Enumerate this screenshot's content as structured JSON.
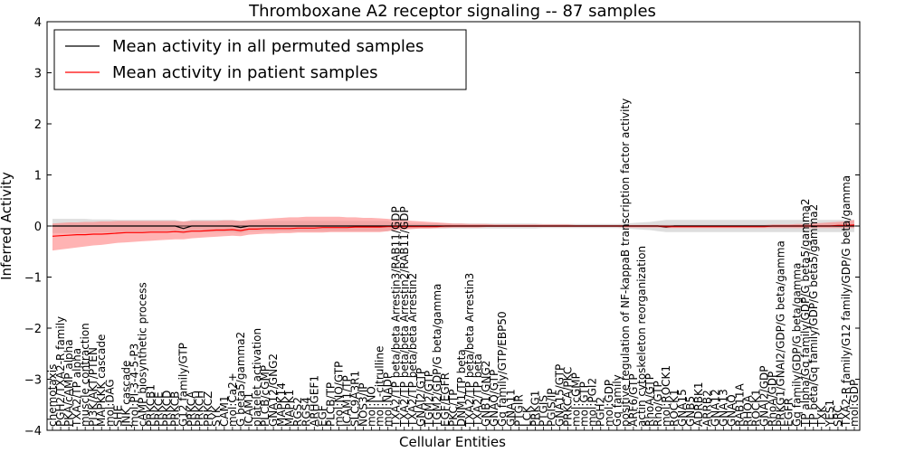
{
  "chart_data": {
    "type": "line",
    "title": "Thromboxane A2 receptor signaling -- 87 samples",
    "xlabel": "Cellular Entities",
    "ylabel": "Inferred Activity",
    "ylim": [
      -4,
      4
    ],
    "yticks": [
      -4,
      -3,
      -2,
      -1,
      0,
      1,
      2,
      3,
      4
    ],
    "colors": {
      "permuted": "#000000",
      "patient": "#ff0000",
      "patient_band": "#ff8080",
      "permuted_band": "#c8c8c8"
    },
    "categories": [
      "chemotaxis",
      "PGH2/TXA2-R family",
      "PKA/cAMP alpha",
      "TXA2/TP alpha",
      "muscle contraction",
      "PI3K/AKT/PTEN",
      "MAPKKK cascade",
      "mol:DAG",
      "SHE",
      "JNK cascade",
      "mol:PI-3-4-5-P3",
      "cAMP biosynthetic process",
      "PRKCB1",
      "PRKCE",
      "PRKCD",
      "PRKCB",
      "G12 family/GTP",
      "PRKCA",
      "PRKCH",
      "PRKCZ",
      "SYK",
      "CAM1",
      "mol:Ca2+",
      "G beta5/gamma2",
      "ICAM1",
      "platelet activation",
      "PLCB/cGMP",
      "GNA12/GNG2",
      "MAPK14",
      "MAPK1",
      "RGS2",
      "RGS4",
      "ARHGEF1",
      "EGF",
      "PLCB/TP",
      "mol:NO/GTP",
      "ICAM1/TP",
      "SLC9A3R1",
      "NOS3/IP",
      "mol:NO",
      "mol:L-citrulline",
      "mol:NADP",
      "TXA2/TP beta/beta Arrestin3/RAB11/GDP",
      "TXA2/TP beta/beta Arrestin2/RAB11/GDP",
      "TXA2/TP beta/beta Arrestin2",
      "GNAI2/GTP",
      "TGM2/GTP",
      "TGM2/GDP/G beta/gamma",
      "EGF/EGFR",
      "PKC/TP",
      "DNM1/TP beta",
      "TXA2/TP beta/beta Arrestin3",
      "TXA2/TP beta",
      "GNB1/GNG2",
      "GNAQ/GTP",
      "Gq family/GTP/EBP50",
      "GNA11",
      "PTGIR",
      "LCK",
      "PRKG1",
      "PTGIS",
      "PGIS/IP",
      "GNA15/GTP",
      "PRKCA/PKC",
      "mol:cGMP",
      "mol:GTP",
      "mol:PGI2",
      "PGH2",
      "mol:GDP",
      "Gq family",
      "positive regulation of NF-kappaB transcription factor activity",
      "ARF6/GTP",
      "actin cytoskeleton reorganization",
      "RhoA/GTP",
      "Rho/GTP",
      "mol:ROCK1",
      "ROCK1",
      "GNA15",
      "GNB5",
      "ADRBK1",
      "ARRB2",
      "GNA12",
      "GNA13",
      "GNAQ",
      "RAB11A",
      "RHOA",
      "ROCK1",
      "GNAI2/GDP",
      "RhoA/GDP",
      "PRKG1/GNAI2/GDP/G beta/gamma",
      "EGFR",
      "Gq family/GDP/G beta/gamma",
      "TP alpha/Gq family/GDP/G beta5/gamma2",
      "TP beta/Gq family/GDP/G beta5/gamma2",
      "TXK",
      "YES1",
      "SRC",
      "TXA2-R family/G12 family/GDP/G beta/gamma",
      "mol:GDP"
    ],
    "series": [
      {
        "name": "Mean activity in all permuted samples",
        "values": [
          0.0,
          0.0,
          0.0,
          0.0,
          0.0,
          0.0,
          0.0,
          0.0,
          0.0,
          0.0,
          0.0,
          0.0,
          0.0,
          0.0,
          0.0,
          0.0,
          -0.05,
          0.0,
          0.0,
          0.0,
          0.0,
          0.0,
          0.0,
          -0.03,
          0.0,
          0.0,
          0.0,
          0.0,
          0.0,
          0.0,
          0.0,
          0.0,
          0.0,
          0.0,
          0.0,
          0.0,
          0.0,
          0.0,
          0.0,
          0.0,
          0.0,
          0.0,
          0.0,
          0.0,
          0.0,
          0.0,
          0.0,
          0.0,
          0.0,
          0.0,
          0.0,
          0.0,
          0.0,
          0.0,
          0.0,
          0.0,
          0.0,
          0.0,
          0.0,
          0.0,
          0.0,
          0.0,
          0.0,
          0.0,
          0.0,
          0.0,
          0.0,
          0.0,
          0.0,
          0.0,
          0.0,
          0.0,
          0.0,
          0.0,
          0.0,
          -0.02,
          0.0,
          0.0,
          0.0,
          0.0,
          0.0,
          0.0,
          0.0,
          0.0,
          0.0,
          0.0,
          0.0,
          0.0,
          0.0,
          0.0,
          0.0,
          0.0,
          0.0,
          0.0,
          0.0,
          0.0,
          0.0,
          0.0,
          0.0
        ],
        "band_low": [
          -0.14,
          -0.14,
          -0.14,
          -0.14,
          -0.14,
          -0.13,
          -0.13,
          -0.13,
          -0.12,
          -0.12,
          -0.12,
          -0.12,
          -0.12,
          -0.12,
          -0.12,
          -0.12,
          -0.15,
          -0.12,
          -0.12,
          -0.12,
          -0.12,
          -0.12,
          -0.12,
          -0.14,
          -0.1,
          -0.1,
          -0.1,
          -0.1,
          -0.1,
          -0.1,
          -0.1,
          -0.1,
          -0.1,
          -0.1,
          -0.1,
          -0.1,
          -0.1,
          -0.1,
          -0.1,
          -0.1,
          -0.1,
          -0.1,
          -0.05,
          -0.05,
          -0.05,
          -0.05,
          -0.05,
          -0.05,
          -0.05,
          -0.05,
          -0.05,
          -0.05,
          -0.05,
          -0.05,
          -0.05,
          -0.05,
          -0.05,
          -0.05,
          -0.05,
          -0.05,
          -0.04,
          -0.04,
          -0.04,
          -0.04,
          -0.04,
          -0.04,
          -0.04,
          -0.04,
          -0.04,
          -0.04,
          -0.05,
          -0.06,
          -0.07,
          -0.08,
          -0.1,
          -0.12,
          -0.12,
          -0.12,
          -0.12,
          -0.12,
          -0.12,
          -0.12,
          -0.12,
          -0.12,
          -0.12,
          -0.12,
          -0.12,
          -0.12,
          -0.12,
          -0.12,
          -0.12,
          -0.12,
          -0.12,
          -0.12,
          -0.12,
          -0.12,
          -0.12,
          -0.12,
          -0.12
        ],
        "band_high": [
          0.14,
          0.14,
          0.14,
          0.14,
          0.14,
          0.13,
          0.13,
          0.13,
          0.12,
          0.12,
          0.12,
          0.12,
          0.12,
          0.12,
          0.12,
          0.12,
          0.08,
          0.12,
          0.12,
          0.12,
          0.12,
          0.12,
          0.12,
          0.1,
          0.1,
          0.1,
          0.1,
          0.1,
          0.1,
          0.1,
          0.1,
          0.1,
          0.1,
          0.1,
          0.1,
          0.1,
          0.1,
          0.1,
          0.1,
          0.1,
          0.1,
          0.1,
          0.05,
          0.05,
          0.05,
          0.05,
          0.05,
          0.05,
          0.05,
          0.05,
          0.05,
          0.05,
          0.05,
          0.05,
          0.05,
          0.05,
          0.05,
          0.05,
          0.05,
          0.05,
          0.04,
          0.04,
          0.04,
          0.04,
          0.04,
          0.04,
          0.04,
          0.04,
          0.04,
          0.04,
          0.05,
          0.06,
          0.07,
          0.08,
          0.1,
          0.12,
          0.12,
          0.12,
          0.12,
          0.12,
          0.12,
          0.12,
          0.12,
          0.12,
          0.12,
          0.12,
          0.12,
          0.12,
          0.12,
          0.12,
          0.12,
          0.12,
          0.12,
          0.12,
          0.12,
          0.12,
          0.12,
          0.12,
          0.12
        ]
      },
      {
        "name": "Mean activity in patient samples",
        "values": [
          -0.2,
          -0.19,
          -0.18,
          -0.17,
          -0.17,
          -0.16,
          -0.16,
          -0.15,
          -0.14,
          -0.13,
          -0.13,
          -0.13,
          -0.12,
          -0.12,
          -0.12,
          -0.11,
          -0.12,
          -0.1,
          -0.1,
          -0.09,
          -0.08,
          -0.08,
          -0.07,
          -0.09,
          -0.06,
          -0.06,
          -0.05,
          -0.05,
          -0.05,
          -0.05,
          -0.04,
          -0.04,
          -0.04,
          -0.03,
          -0.03,
          -0.03,
          -0.03,
          -0.02,
          -0.02,
          -0.02,
          -0.02,
          -0.01,
          -0.01,
          -0.01,
          -0.01,
          -0.01,
          -0.01,
          -0.01,
          0.0,
          0.0,
          0.0,
          0.0,
          0.0,
          0.0,
          0.0,
          0.0,
          0.0,
          0.0,
          0.0,
          0.0,
          0.0,
          0.0,
          0.0,
          0.0,
          0.0,
          0.0,
          0.0,
          0.0,
          0.0,
          0.0,
          0.0,
          0.0,
          0.0,
          0.0,
          0.0,
          -0.01,
          -0.01,
          -0.01,
          -0.01,
          -0.01,
          -0.01,
          -0.01,
          -0.01,
          -0.01,
          -0.01,
          -0.01,
          -0.01,
          -0.01,
          0.0,
          0.0,
          0.0,
          0.0,
          0.0,
          0.0,
          0.0,
          0.0,
          0.01,
          0.01,
          0.02
        ],
        "band_low": [
          -0.48,
          -0.46,
          -0.44,
          -0.42,
          -0.4,
          -0.38,
          -0.37,
          -0.35,
          -0.33,
          -0.32,
          -0.31,
          -0.3,
          -0.29,
          -0.28,
          -0.27,
          -0.26,
          -0.26,
          -0.24,
          -0.23,
          -0.22,
          -0.21,
          -0.2,
          -0.19,
          -0.2,
          -0.17,
          -0.16,
          -0.15,
          -0.15,
          -0.14,
          -0.14,
          -0.13,
          -0.13,
          -0.13,
          -0.13,
          -0.12,
          -0.12,
          -0.12,
          -0.12,
          -0.12,
          -0.12,
          -0.12,
          -0.1,
          -0.08,
          -0.07,
          -0.06,
          -0.05,
          -0.05,
          -0.04,
          -0.04,
          -0.03,
          -0.03,
          -0.03,
          -0.03,
          -0.02,
          -0.02,
          -0.02,
          -0.02,
          -0.02,
          -0.02,
          -0.02,
          -0.02,
          -0.02,
          -0.02,
          -0.02,
          -0.02,
          -0.02,
          -0.02,
          -0.02,
          -0.02,
          -0.02,
          -0.03,
          -0.03,
          -0.03,
          -0.03,
          -0.03,
          -0.04,
          -0.04,
          -0.04,
          -0.04,
          -0.04,
          -0.04,
          -0.04,
          -0.04,
          -0.04,
          -0.04,
          -0.04,
          -0.04,
          -0.04,
          -0.04,
          -0.04,
          -0.04,
          -0.04,
          -0.04,
          -0.04,
          -0.04,
          -0.04,
          -0.04,
          -0.04,
          -0.04
        ],
        "band_high": [
          0.05,
          0.06,
          0.07,
          0.07,
          0.08,
          0.08,
          0.09,
          0.09,
          0.1,
          0.1,
          0.1,
          0.1,
          0.1,
          0.1,
          0.1,
          0.1,
          0.09,
          0.1,
          0.1,
          0.1,
          0.1,
          0.11,
          0.11,
          0.1,
          0.12,
          0.13,
          0.14,
          0.15,
          0.16,
          0.17,
          0.17,
          0.18,
          0.18,
          0.18,
          0.18,
          0.18,
          0.17,
          0.17,
          0.16,
          0.16,
          0.15,
          0.14,
          0.12,
          0.11,
          0.1,
          0.09,
          0.08,
          0.07,
          0.06,
          0.05,
          0.05,
          0.04,
          0.04,
          0.04,
          0.03,
          0.03,
          0.03,
          0.03,
          0.03,
          0.03,
          0.03,
          0.03,
          0.03,
          0.03,
          0.02,
          0.02,
          0.02,
          0.02,
          0.02,
          0.02,
          0.02,
          0.02,
          0.02,
          0.02,
          0.02,
          0.02,
          0.02,
          0.02,
          0.02,
          0.02,
          0.02,
          0.02,
          0.02,
          0.02,
          0.02,
          0.02,
          0.02,
          0.02,
          0.03,
          0.03,
          0.03,
          0.04,
          0.04,
          0.05,
          0.06,
          0.07,
          0.08,
          0.09,
          0.12
        ]
      }
    ]
  }
}
